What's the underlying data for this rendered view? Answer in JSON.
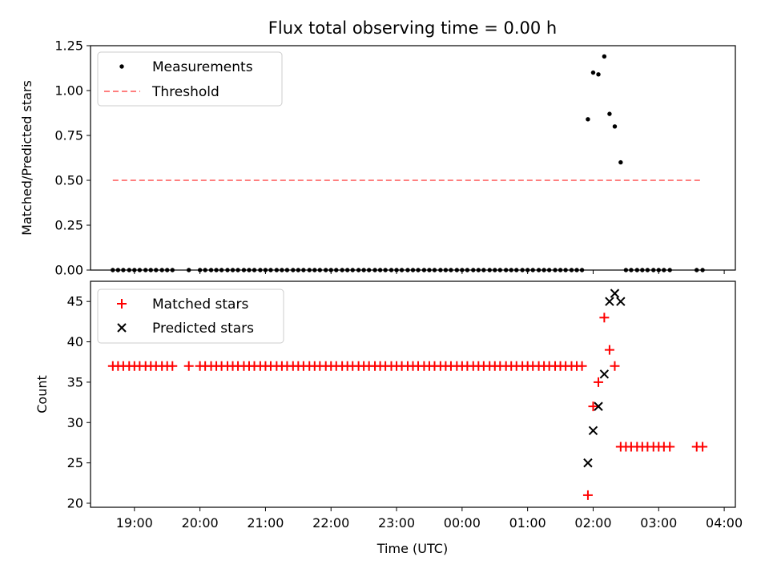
{
  "chart_data": {
    "type": "scatter",
    "title": "Flux total observing time = 0.00 h",
    "xlabel": "Time (UTC)",
    "x_unit": "hours (UTC)",
    "xlim": [
      18.33,
      28.17
    ],
    "x_ticks": [
      19,
      20,
      21,
      22,
      23,
      24,
      25,
      26,
      27,
      28
    ],
    "x_tick_labels": [
      "19:00",
      "20:00",
      "21:00",
      "22:00",
      "23:00",
      "00:00",
      "01:00",
      "02:00",
      "03:00",
      "04:00"
    ],
    "top_panel": {
      "ylabel": "Matched/Predicted stars",
      "ylim": [
        0,
        1.25
      ],
      "y_ticks": [
        0,
        0.25,
        0.5,
        0.75,
        1.0,
        1.25
      ],
      "y_tick_labels": [
        "0.00",
        "0.25",
        "0.50",
        "0.75",
        "1.00",
        "1.25"
      ],
      "legend": {
        "position": "upper-left",
        "entries": [
          "Measurements",
          "Threshold"
        ]
      },
      "series": [
        {
          "name": "Measurements",
          "marker": "dot",
          "color": "#000000",
          "x": [
            18.67,
            18.75,
            18.83,
            18.92,
            19.0,
            19.08,
            19.17,
            19.25,
            19.33,
            19.42,
            19.5,
            19.58,
            19.83,
            20.0,
            20.08,
            20.17,
            20.25,
            20.33,
            20.42,
            20.5,
            20.58,
            20.67,
            20.75,
            20.83,
            20.92,
            21.0,
            21.08,
            21.17,
            21.25,
            21.33,
            21.42,
            21.5,
            21.58,
            21.67,
            21.75,
            21.83,
            21.92,
            22.0,
            22.08,
            22.17,
            22.25,
            22.33,
            22.42,
            22.5,
            22.58,
            22.67,
            22.75,
            22.83,
            22.92,
            23.0,
            23.08,
            23.17,
            23.25,
            23.33,
            23.42,
            23.5,
            23.58,
            23.67,
            23.75,
            23.83,
            23.92,
            24.0,
            24.08,
            24.17,
            24.25,
            24.33,
            24.42,
            24.5,
            24.58,
            24.67,
            24.75,
            24.83,
            24.92,
            25.0,
            25.08,
            25.17,
            25.25,
            25.33,
            25.42,
            25.5,
            25.58,
            25.67,
            25.75,
            25.83,
            25.92,
            26.0,
            26.08,
            26.17,
            26.25,
            26.33,
            26.42,
            26.5,
            26.58,
            26.67,
            26.75,
            26.83,
            26.92,
            27.0,
            27.08,
            27.17,
            27.58,
            27.67
          ],
          "y": [
            0,
            0,
            0,
            0,
            0,
            0,
            0,
            0,
            0,
            0,
            0,
            0,
            0,
            0,
            0,
            0,
            0,
            0,
            0,
            0,
            0,
            0,
            0,
            0,
            0,
            0,
            0,
            0,
            0,
            0,
            0,
            0,
            0,
            0,
            0,
            0,
            0,
            0,
            0,
            0,
            0,
            0,
            0,
            0,
            0,
            0,
            0,
            0,
            0,
            0,
            0,
            0,
            0,
            0,
            0,
            0,
            0,
            0,
            0,
            0,
            0,
            0,
            0,
            0,
            0,
            0,
            0,
            0,
            0,
            0,
            0,
            0,
            0,
            0,
            0,
            0,
            0,
            0,
            0,
            0,
            0,
            0,
            0,
            0,
            0.84,
            1.1,
            1.09,
            1.19,
            0.87,
            0.8,
            0.6,
            0,
            0,
            0,
            0,
            0,
            0,
            0,
            0,
            0,
            0,
            0
          ]
        },
        {
          "name": "Threshold",
          "style": "dashed",
          "color": "#ff7f7f",
          "x": [
            18.67,
            27.67
          ],
          "y": [
            0.5,
            0.5
          ]
        }
      ]
    },
    "bottom_panel": {
      "ylabel": "Count",
      "ylim": [
        19.5,
        47.5
      ],
      "y_ticks": [
        20,
        25,
        30,
        35,
        40,
        45
      ],
      "y_tick_labels": [
        "20",
        "25",
        "30",
        "35",
        "40",
        "45"
      ],
      "legend": {
        "position": "upper-left",
        "entries": [
          "Matched stars",
          "Predicted stars"
        ]
      },
      "series": [
        {
          "name": "Matched stars",
          "marker": "plus",
          "color": "#ff0000",
          "x": [
            18.67,
            18.75,
            18.83,
            18.92,
            19.0,
            19.08,
            19.17,
            19.25,
            19.33,
            19.42,
            19.5,
            19.58,
            19.83,
            20.0,
            20.08,
            20.17,
            20.25,
            20.33,
            20.42,
            20.5,
            20.58,
            20.67,
            20.75,
            20.83,
            20.92,
            21.0,
            21.08,
            21.17,
            21.25,
            21.33,
            21.42,
            21.5,
            21.58,
            21.67,
            21.75,
            21.83,
            21.92,
            22.0,
            22.08,
            22.17,
            22.25,
            22.33,
            22.42,
            22.5,
            22.58,
            22.67,
            22.75,
            22.83,
            22.92,
            23.0,
            23.08,
            23.17,
            23.25,
            23.33,
            23.42,
            23.5,
            23.58,
            23.67,
            23.75,
            23.83,
            23.92,
            24.0,
            24.08,
            24.17,
            24.25,
            24.33,
            24.42,
            24.5,
            24.58,
            24.67,
            24.75,
            24.83,
            24.92,
            25.0,
            25.08,
            25.17,
            25.25,
            25.33,
            25.42,
            25.5,
            25.58,
            25.67,
            25.75,
            25.83,
            25.92,
            26.0,
            26.08,
            26.17,
            26.25,
            26.33,
            26.42,
            26.5,
            26.58,
            26.67,
            26.75,
            26.83,
            26.92,
            27.0,
            27.08,
            27.17,
            27.58,
            27.67
          ],
          "y": [
            37,
            37,
            37,
            37,
            37,
            37,
            37,
            37,
            37,
            37,
            37,
            37,
            37,
            37,
            37,
            37,
            37,
            37,
            37,
            37,
            37,
            37,
            37,
            37,
            37,
            37,
            37,
            37,
            37,
            37,
            37,
            37,
            37,
            37,
            37,
            37,
            37,
            37,
            37,
            37,
            37,
            37,
            37,
            37,
            37,
            37,
            37,
            37,
            37,
            37,
            37,
            37,
            37,
            37,
            37,
            37,
            37,
            37,
            37,
            37,
            37,
            37,
            37,
            37,
            37,
            37,
            37,
            37,
            37,
            37,
            37,
            37,
            37,
            37,
            37,
            37,
            37,
            37,
            37,
            37,
            37,
            37,
            37,
            37,
            21,
            32,
            35,
            43,
            39,
            37,
            27,
            27,
            27,
            27,
            27,
            27,
            27,
            27,
            27,
            27,
            27,
            27
          ]
        },
        {
          "name": "Predicted stars",
          "marker": "x",
          "color": "#000000",
          "x": [
            25.92,
            26.0,
            26.08,
            26.17,
            26.25,
            26.33,
            26.42
          ],
          "y": [
            25,
            29,
            32,
            36,
            45,
            46,
            45
          ]
        }
      ]
    }
  }
}
